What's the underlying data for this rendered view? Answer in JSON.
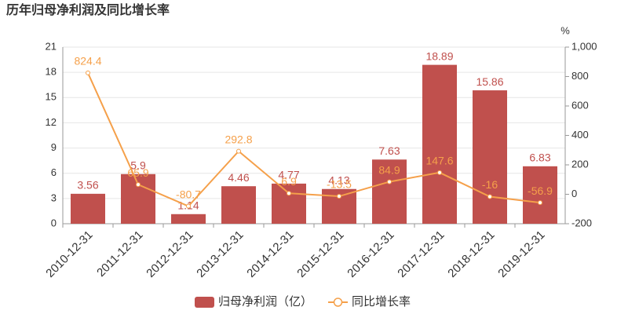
{
  "chart_data": {
    "type": "bar",
    "title": "历年归母净利润及同比增长率",
    "y2_label": "%",
    "categories": [
      "2010-12-31",
      "2011-12-31",
      "2012-12-31",
      "2013-12-31",
      "2014-12-31",
      "2015-12-31",
      "2016-12-31",
      "2017-12-31",
      "2018-12-31",
      "2019-12-31"
    ],
    "series": [
      {
        "name": "归母净利润（亿）",
        "type": "bar",
        "color": "#c0504d",
        "values": [
          3.56,
          5.9,
          1.14,
          4.46,
          4.77,
          4.13,
          7.63,
          18.89,
          15.86,
          6.83
        ]
      },
      {
        "name": "同比增长率",
        "type": "line",
        "axis": "y2",
        "color": "#f5a04a",
        "values": [
          824.4,
          65.9,
          -80.7,
          292.8,
          6.9,
          -13.5,
          84.9,
          147.6,
          -16,
          -56.9
        ]
      }
    ],
    "ylim": [
      0,
      21
    ],
    "yticks": [
      0,
      3,
      6,
      9,
      12,
      15,
      18,
      21
    ],
    "y2lim": [
      -200,
      1000
    ],
    "y2ticks": [
      -200,
      0,
      200,
      400,
      600,
      800,
      {
        "value": 1000,
        "label": "1,000"
      }
    ],
    "grid": true,
    "legend": "bottom"
  }
}
